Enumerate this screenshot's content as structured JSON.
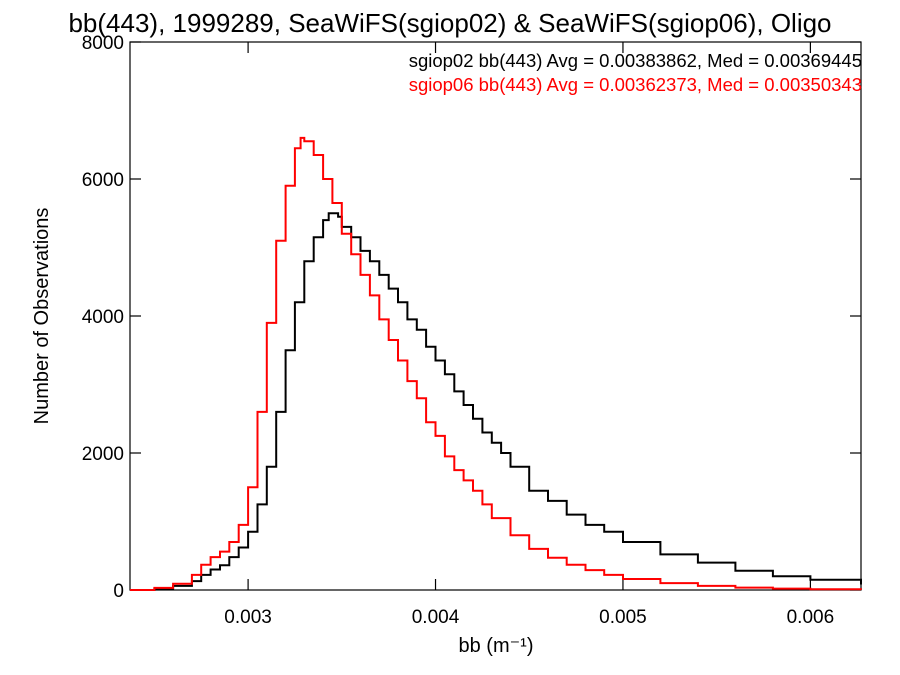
{
  "chart_data": {
    "type": "line",
    "title": "bb(443), 1999289, SeaWiFS(sgiop02) & SeaWiFS(sgiop06), Oligo",
    "xlabel": "bb (m⁻¹)",
    "ylabel": "Number of Observations",
    "xlim": [
      0.00237,
      0.00627
    ],
    "ylim": [
      0,
      8000
    ],
    "xticks": [
      "0.003",
      "0.004",
      "0.005",
      "0.006"
    ],
    "yticks": [
      "0",
      "2000",
      "4000",
      "6000",
      "8000"
    ],
    "grid": false,
    "legend_placement": "top-right",
    "series": [
      {
        "name": "sgiop02 bb(443) Avg = 0.00383862, Med = 0.00369445",
        "color": "#000000",
        "x": [
          0.00237,
          0.0025,
          0.0026,
          0.0027,
          0.00275,
          0.0028,
          0.00285,
          0.0029,
          0.00295,
          0.003,
          0.00305,
          0.0031,
          0.00315,
          0.0032,
          0.00325,
          0.0033,
          0.00335,
          0.0034,
          0.00343,
          0.00348,
          0.0035,
          0.00355,
          0.0036,
          0.00365,
          0.0037,
          0.00375,
          0.0038,
          0.00385,
          0.0039,
          0.00395,
          0.004,
          0.00405,
          0.0041,
          0.00415,
          0.0042,
          0.00425,
          0.0043,
          0.00435,
          0.0044,
          0.0045,
          0.0046,
          0.0047,
          0.0048,
          0.0049,
          0.005,
          0.0052,
          0.0054,
          0.0056,
          0.0058,
          0.006,
          0.00627
        ],
        "y": [
          0,
          20,
          60,
          130,
          220,
          300,
          360,
          480,
          620,
          850,
          1250,
          1800,
          2600,
          3500,
          4200,
          4800,
          5150,
          5400,
          5500,
          5450,
          5300,
          5150,
          4950,
          4800,
          4600,
          4400,
          4200,
          3950,
          3800,
          3550,
          3350,
          3150,
          2900,
          2700,
          2500,
          2300,
          2150,
          2000,
          1800,
          1450,
          1300,
          1100,
          950,
          850,
          700,
          520,
          400,
          280,
          200,
          150,
          80
        ]
      },
      {
        "name": "sgiop06 bb(443) Avg = 0.00362373, Med = 0.00350343",
        "color": "#ff0000",
        "x": [
          0.00237,
          0.0025,
          0.0026,
          0.0027,
          0.00275,
          0.0028,
          0.00285,
          0.0029,
          0.00295,
          0.003,
          0.00305,
          0.0031,
          0.00315,
          0.0032,
          0.00325,
          0.00328,
          0.0033,
          0.00335,
          0.0034,
          0.00345,
          0.0035,
          0.00355,
          0.0036,
          0.00365,
          0.0037,
          0.00375,
          0.0038,
          0.00385,
          0.0039,
          0.00395,
          0.004,
          0.00405,
          0.0041,
          0.00415,
          0.0042,
          0.00425,
          0.0043,
          0.0044,
          0.0045,
          0.0046,
          0.0047,
          0.0048,
          0.0049,
          0.005,
          0.0052,
          0.0054,
          0.0056,
          0.0058,
          0.006,
          0.00627
        ],
        "y": [
          0,
          30,
          90,
          220,
          370,
          480,
          560,
          700,
          950,
          1500,
          2600,
          3900,
          5100,
          5900,
          6450,
          6600,
          6550,
          6350,
          6000,
          5650,
          5200,
          4900,
          4600,
          4300,
          3950,
          3650,
          3350,
          3050,
          2800,
          2450,
          2250,
          1950,
          1750,
          1600,
          1450,
          1250,
          1050,
          800,
          600,
          470,
          370,
          290,
          220,
          160,
          100,
          60,
          35,
          20,
          10,
          5
        ]
      }
    ]
  }
}
